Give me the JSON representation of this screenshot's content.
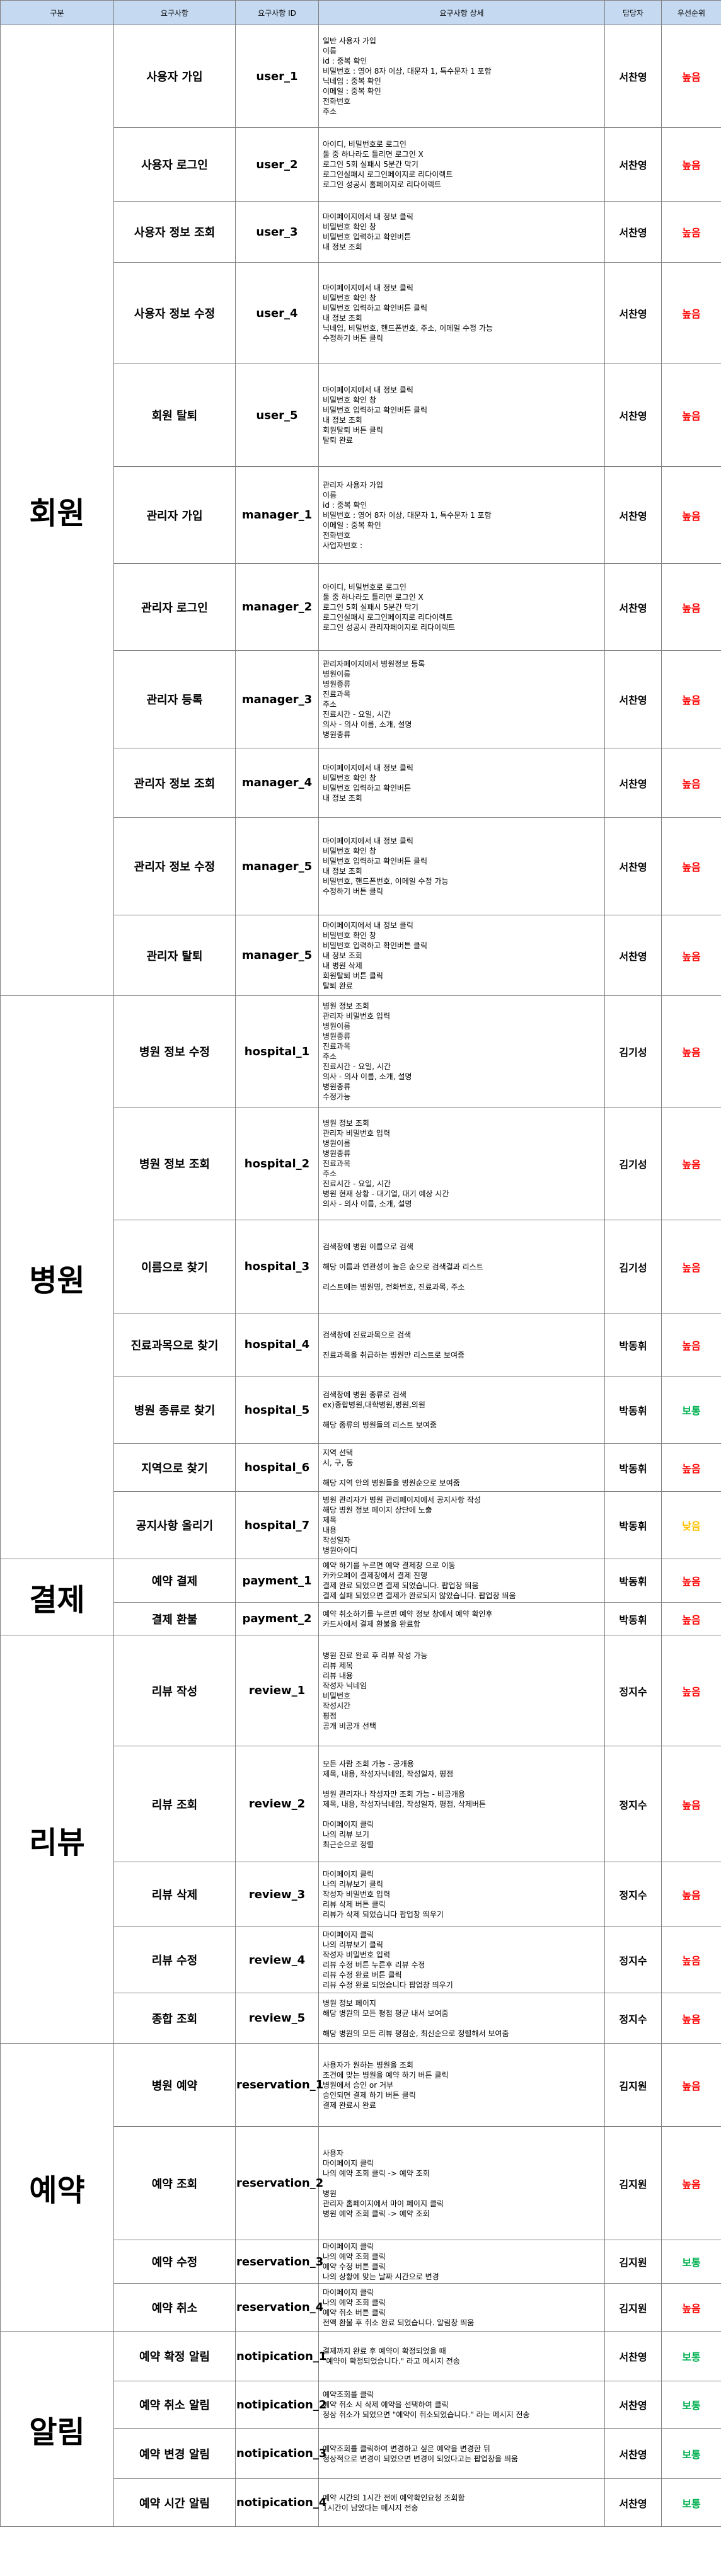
{
  "headers": [
    "구분",
    "요구사항",
    "요구사항 ID",
    "요구사항 상세",
    "담당자",
    "우선순위"
  ],
  "colors": {
    "high": "#ff0000",
    "normal": "#00b050",
    "low": "#ffc000",
    "header_bg": "#c5d9f1"
  },
  "sections": [
    {
      "category": "회원",
      "rows": [
        {
          "req": "사용자 가입",
          "id": "user_1",
          "detail": "일반 사용자 가입\n이름\nid          :       중복 확인\n비밀번호  :   영어 8자 이상, 대문자 1, 특수문자 1  포함\n닉네임     :     중복 확인\n이메일     :       중복 확인\n전화번호\n주소",
          "owner": "서찬영",
          "priority": "높음"
        },
        {
          "req": "사용자 로그인",
          "id": "user_2",
          "detail": "아이디, 비밀번호로 로그인\n둘 중 하나라도 틀리면 로그인 X\n로그인 5회 실패시 5분간 막기\n로그인실패시 로그인페이지로 리다이렉트\n로그인 성공시 홈페이지로 리다이렉트",
          "owner": "서찬영",
          "priority": "높음"
        },
        {
          "req": "사용자 정보 조회",
          "id": "user_3",
          "detail": "마이페이지에서 내 정보 클릭\n비밀번호 확인 창\n비밀번호 입력하고 확인버튼\n내 정보 조회",
          "owner": "서찬영",
          "priority": "높음"
        },
        {
          "req": "사용자 정보 수정",
          "id": "user_4",
          "detail": "마이페이지에서 내 정보 클릭\n비밀번호 확인 창\n비밀번호 입력하고 확인버튼 클릭\n내 정보 조회\n닉네임, 비밀번호, 핸드폰번호, 주소, 이메일 수정 가능\n수정하기 버튼 클릭",
          "owner": "서찬영",
          "priority": "높음"
        },
        {
          "req": "회원 탈퇴",
          "id": "user_5",
          "detail": "마이페이지에서 내 정보 클릭\n비밀번호 확인 창\n비밀번호 입력하고 확인버튼 클릭\n내 정보 조회\n회원탈퇴 버튼 클릭\n탈퇴 완료",
          "owner": "서찬영",
          "priority": "높음"
        },
        {
          "req": "관리자 가입",
          "id": "manager_1",
          "detail": "관리자 사용자 가입\n이름\nid          :       중복 확인\n비밀번호  :   영어 8자 이상, 대문자 1, 특수문자 1  포함\n이메일     :       중복 확인\n전화번호\n사업자번호 :",
          "owner": "서찬영",
          "priority": "높음"
        },
        {
          "req": "관리자  로그인",
          "id": "manager_2",
          "detail": "아이디, 비밀번호로 로그인\n둘 중 하나라도 틀리면 로그인 X\n로그인 5회 실패시 5분간 막기\n로그인실패시 로그인페이지로 리다이렉트\n로그인 성공시 관리자페이지로 리다이렉트",
          "owner": "서찬영",
          "priority": "높음"
        },
        {
          "req": "관리자 등록",
          "id": "manager_3",
          "detail": "관리자페이지에서 병원정보 등록\n병원이름\n병원종류\n진료과목\n주소\n진료시간 - 요일, 시간\n의사 - 의사 이름, 소개, 설명\n병원종류",
          "owner": "서찬영",
          "priority": "높음"
        },
        {
          "req": "관리자 정보 조회",
          "id": "manager_4",
          "detail": "마이페이지에서 내 정보 클릭\n비밀번호 확인 창\n비밀번호 입력하고 확인버튼\n내 정보 조회",
          "owner": "서찬영",
          "priority": "높음"
        },
        {
          "req": "관리자 정보 수정",
          "id": "manager_5",
          "detail": "마이페이지에서 내 정보 클릭\n비밀번호 확인 창\n비밀번호 입력하고 확인버튼 클릭\n내 정보 조회\n비밀번호, 핸드폰번호, 이메일 수정 가능\n수정하기 버튼 클릭",
          "owner": "서찬영",
          "priority": "높음"
        },
        {
          "req": "관리자 탈퇴",
          "id": "manager_5",
          "detail": "마이페이지에서 내 정보 클릭\n비밀번호 확인 창\n비밀번호 입력하고 확인버튼 클릭\n내 정보 조회\n내 병원 삭제\n회원탈퇴 버튼 클릭\n탈퇴 완료",
          "owner": "서찬영",
          "priority": "높음"
        }
      ]
    },
    {
      "category": "병원",
      "rows": [
        {
          "req": "병원 정보 수정",
          "id": "hospital_1",
          "detail": "병원 정보 조회\n관리자 비밀번호 입력\n병원이름\n병원종류\n진료과목\n주소\n진료시간 - 요일, 시간\n의사 - 의사 이름, 소개, 설명\n병원종류\n수정가능",
          "owner": "김기성",
          "priority": "높음"
        },
        {
          "req": "병원 정보 조회",
          "id": "hospital_2",
          "detail": "병원 정보 조회\n관리자 비밀번호 입력\n병원이름\n병원종류\n진료과목\n주소\n진료시간 - 요일, 시간\n병원 현재 상황 - 대기열, 대기 예상 시간\n의사 - 의사 이름, 소개, 설명",
          "owner": "김기성",
          "priority": "높음"
        },
        {
          "req": "이름으로 찾기",
          "id": "hospital_3",
          "detail": "검색창에 병원 이름으로 검색\n\n해당 이름과 연관성이 높은 순으로 검색결과 리스트\n\n리스트에는 병원명, 전화번호, 진료과목, 주소",
          "owner": "김기성",
          "priority": "높음"
        },
        {
          "req": "진료과목으로 찾기",
          "id": "hospital_4",
          "detail": "검색창에 진료과목으로 검색\n\n진료과목을 취급하는 병원만 리스트로 보여줌",
          "owner": "박동휘",
          "priority": "높음"
        },
        {
          "req": "병원 종류로 찾기",
          "id": "hospital_5",
          "detail": "검색창에 병원 종류로 검색\nex)종합병원,대학병원,병원,의원\n\n해당 종류의 병원들의 리스트 보여줌",
          "owner": "박동휘",
          "priority": "보통"
        },
        {
          "req": "지역으로 찾기",
          "id": "hospital_6",
          "detail": "지역 선택\n시, 구, 동\n\n해당 지역 안의 병원들을 병원순으로 보여줌",
          "owner": "박동휘",
          "priority": "높음"
        },
        {
          "req": "공지사항 올리기",
          "id": "hospital_7",
          "detail": "병원 관리자가 병원 관리페이지에서 공지사항 작성\n해당 병원 정보 페이지 상단에 노출\n제목\n내용\n작성일자\n병원아이디",
          "owner": "박동휘",
          "priority": "낮음"
        }
      ]
    },
    {
      "category": "결제",
      "rows": [
        {
          "req": "예약 결제",
          "id": "payment_1",
          "detail": "예약 하기를 누르면 예약 결제창 으로 이동\n카카오페이 결제창에서 결제 진행\n결제 완료 되었으면 결제 되었습니다. 팝업창 띄움\n결제 실패 되었으면 결제가 완료되지 않았습니다. 팝업창 띄움",
          "owner": "박동휘",
          "priority": "높음"
        },
        {
          "req": "결제 환불",
          "id": "payment_2",
          "detail": "예약 취소하기를 누르면 예약 정보 창에서 예약 확인후\n카드사에서 결제 환불을 완료함",
          "owner": "박동휘",
          "priority": "높음"
        }
      ]
    },
    {
      "category": "리뷰",
      "rows": [
        {
          "req": "리뷰 작성",
          "id": "review_1",
          "detail": "병원 진료 완료 후 리뷰 작성 가능\n리뷰 제목\n리뷰 내용\n작성자 닉네임\n비밀번호\n작성시간\n평점\n공개 비공개 선택",
          "owner": "정지수",
          "priority": "높음"
        },
        {
          "req": "리뷰 조회",
          "id": "review_2",
          "detail": "모든 사람 조회 가능 - 공개용\n제목, 내용, 작성자닉네임, 작성일자, 평점\n\n병원 관리자나 작성자만 조회 가능 - 비공개용\n제목, 내용, 작성자닉네임, 작성일자, 평점, 삭제버튼\n\n마이페이지 클릭\n나의 리뷰 보기\n최근순으로 정렬",
          "owner": "정지수",
          "priority": "높음"
        },
        {
          "req": "리뷰 삭제",
          "id": "review_3",
          "detail": "마이페이지 클릭\n나의 리뷰보기 클릭\n작성자 비밀번호 입력\n리뷰 삭제 버튼 클릭\n리뷰가 삭제 되었습니다 팝업창 띄우기",
          "owner": "정지수",
          "priority": "높음"
        },
        {
          "req": "리뷰 수정",
          "id": "review_4",
          "detail": "마이페이지 클릭\n나의 리뷰보기 클릭\n작성자 비밀번호 입력\n리뷰 수정 버튼 누른후 리뷰 수정\n리뷰 수정 완료 버튼 클릭\n리뷰 수정 완료 되었습니다 팝업창 띄우기",
          "owner": "정지수",
          "priority": "높음"
        },
        {
          "req": "종합 조회",
          "id": "review_5",
          "detail": "병원 정보 페이지\n해당 병원의 모든 평점 평균 내서 보여줌\n\n해당 병원의 모든 리뷰 평점순, 최신순으로 정렬해서 보여줌",
          "owner": "정지수",
          "priority": "높음"
        }
      ]
    },
    {
      "category": "예약",
      "rows": [
        {
          "req": "병원 예약",
          "id": "reservation_1",
          "detail": "사용자가 원하는 병원을 조회\n조건에 맞는 병원을 예약 하기 버튼 클릭\n병원에서 승인 or 거부\n승인되면 결제 하기 버튼 클릭\n결제 완료시 완료",
          "owner": "김지원",
          "priority": "높음"
        },
        {
          "req": "예약 조회",
          "id": "reservation_2",
          "detail": "사용자\n마이페이지 클릭\n나의 예약 조회 클릭 -> 예약 조회\n\n병원\n관리자 홈페이지에서 마이 페이지 클릭\n병원 예약 조회 클릭 -> 예약 조회",
          "owner": "김지원",
          "priority": "높음"
        },
        {
          "req": "예약 수정",
          "id": "reservation_3",
          "detail": "마이페이지 클릭\n나의 예약 조회 클릭\n예약 수정 버튼 클릭\n나의 상황에 맞는 날짜 시간으로 변경",
          "owner": "김지원",
          "priority": "보통"
        },
        {
          "req": "예약 취소",
          "id": "reservation_4",
          "detail": "마이페이지 클릭\n나의 예약 조회 클릭\n예약 취소 버튼 클릭\n전액 환불 후 취소 완료 되었습니다. 알림창 띄움",
          "owner": "김지원",
          "priority": "높음"
        }
      ]
    },
    {
      "category": "알림",
      "rows": [
        {
          "req": "예약 확정 알림",
          "id": "notipication_1",
          "detail": "결제까지 완료 후 예약이 확정되었을 때\n\"예약이 확정되었습니다.\" 라고 메시지 전송",
          "owner": "서찬영",
          "priority": "보통"
        },
        {
          "req": "예약 취소 알림",
          "id": "notipication_2",
          "detail": "예약조회를 클릭\n예약 취소 시 삭제 예약을 선택하여 클릭\n정상 취소가 되었으면 \"예약이 취소되었습니다.\" 라는 메시지 전송",
          "owner": "서찬영",
          "priority": "보통"
        },
        {
          "req": "예약 변경 알림",
          "id": "notipication_3",
          "detail": "예약조회를 클릭하여 변경하고 싶은 예약을 변경한 뒤\n정상적으로 변경이 되었으면 변경이 되었다고는 팝업창을 띄움",
          "owner": "서찬영",
          "priority": "보통"
        },
        {
          "req": "예약 시간 알림",
          "id": "notipication_4",
          "detail": "예약 시간의 1시간 전에 예약확인요청 조회함\n1시간이 남았다는 메시지 전송",
          "owner": "서찬영",
          "priority": "보통"
        }
      ]
    }
  ]
}
